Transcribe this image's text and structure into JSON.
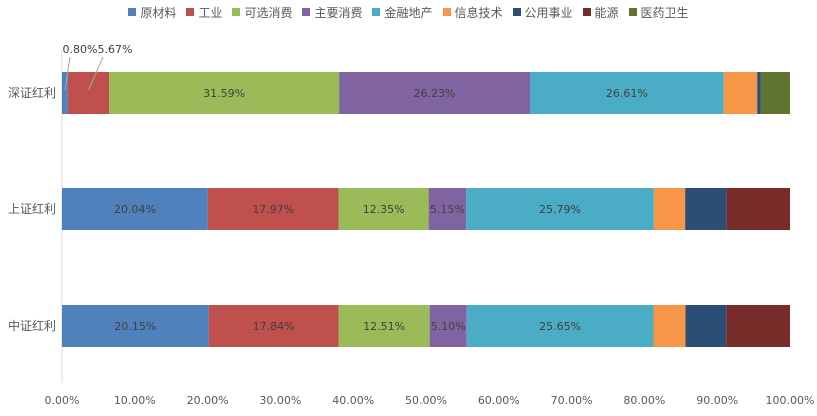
{
  "chart_data": {
    "type": "bar",
    "orientation": "horizontal",
    "stacked": "percent",
    "categories": [
      "深证红利",
      "上证红利",
      "中证红利"
    ],
    "series": [
      {
        "name": "原材料",
        "color": "#4F81BD",
        "values": [
          0.8,
          20.04,
          20.15
        ]
      },
      {
        "name": "工业",
        "color": "#C0504D",
        "values": [
          5.67,
          17.97,
          17.84
        ]
      },
      {
        "name": "可选消费",
        "color": "#9BBB59",
        "values": [
          31.59,
          12.35,
          12.51
        ]
      },
      {
        "name": "主要消费",
        "color": "#8064A2",
        "values": [
          26.23,
          5.15,
          5.1
        ]
      },
      {
        "name": "金融地产",
        "color": "#4BACC6",
        "values": [
          26.61,
          25.79,
          25.65
        ]
      },
      {
        "name": "信息技术",
        "color": "#F79646",
        "values": [
          4.6,
          4.3,
          4.4
        ]
      },
      {
        "name": "公用事业",
        "color": "#2C4D75",
        "values": [
          0.5,
          5.7,
          5.6
        ]
      },
      {
        "name": "能源",
        "color": "#772C2A",
        "values": [
          0.0,
          8.7,
          8.75
        ]
      },
      {
        "name": "医药卫生",
        "color": "#5F7530",
        "values": [
          4.0,
          0.0,
          0.0
        ]
      }
    ],
    "data_labels": [
      {
        "category": 0,
        "series": 0,
        "text": "0.80%",
        "callout": true
      },
      {
        "category": 0,
        "series": 1,
        "text": "5.67%",
        "callout": true
      },
      {
        "category": 0,
        "series": 2,
        "text": "31.59%"
      },
      {
        "category": 0,
        "series": 3,
        "text": "26.23%"
      },
      {
        "category": 0,
        "series": 4,
        "text": "26.61%"
      },
      {
        "category": 1,
        "series": 0,
        "text": "20.04%"
      },
      {
        "category": 1,
        "series": 1,
        "text": "17.97%"
      },
      {
        "category": 1,
        "series": 2,
        "text": "12.35%"
      },
      {
        "category": 1,
        "series": 3,
        "text": "5.15%"
      },
      {
        "category": 1,
        "series": 4,
        "text": "25.79%"
      },
      {
        "category": 2,
        "series": 0,
        "text": "20.15%"
      },
      {
        "category": 2,
        "series": 1,
        "text": "17.84%"
      },
      {
        "category": 2,
        "series": 2,
        "text": "12.51%"
      },
      {
        "category": 2,
        "series": 3,
        "text": "5.10%"
      },
      {
        "category": 2,
        "series": 4,
        "text": "25.65%"
      }
    ],
    "xlim": [
      0,
      100
    ],
    "x_ticks": [
      "0.00%",
      "10.00%",
      "20.00%",
      "30.00%",
      "40.00%",
      "50.00%",
      "60.00%",
      "70.00%",
      "80.00%",
      "90.00%",
      "100.00%"
    ],
    "grid": false,
    "legend_position": "top",
    "title": "",
    "xlabel": "",
    "ylabel": ""
  }
}
